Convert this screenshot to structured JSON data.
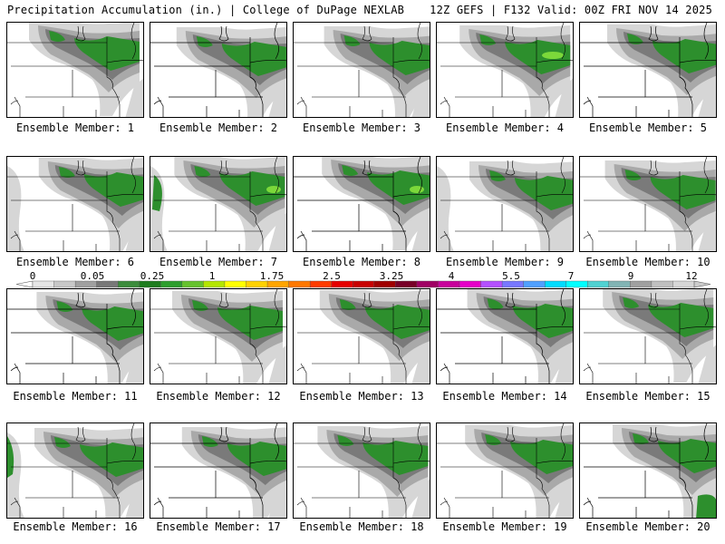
{
  "header": {
    "title": "Precipitation Accumulation (in.) | College of DuPage NEXLAB",
    "run_info": "12Z GEFS | F132 Valid: 00Z FRI NOV 14 2025"
  },
  "members": [
    {
      "label": "Ensemble Member: 1"
    },
    {
      "label": "Ensemble Member: 2"
    },
    {
      "label": "Ensemble Member: 3"
    },
    {
      "label": "Ensemble Member: 4"
    },
    {
      "label": "Ensemble Member: 5"
    },
    {
      "label": "Ensemble Member: 6"
    },
    {
      "label": "Ensemble Member: 7"
    },
    {
      "label": "Ensemble Member: 8"
    },
    {
      "label": "Ensemble Member: 9"
    },
    {
      "label": "Ensemble Member: 10"
    },
    {
      "label": "Ensemble Member: 11"
    },
    {
      "label": "Ensemble Member: 12"
    },
    {
      "label": "Ensemble Member: 13"
    },
    {
      "label": "Ensemble Member: 14"
    },
    {
      "label": "Ensemble Member: 15"
    },
    {
      "label": "Ensemble Member: 16"
    },
    {
      "label": "Ensemble Member: 17"
    },
    {
      "label": "Ensemble Member: 18"
    },
    {
      "label": "Ensemble Member: 19"
    },
    {
      "label": "Ensemble Member: 20"
    }
  ],
  "colorbar": {
    "labels": [
      "0",
      "0.05",
      "0.25",
      "1",
      "1.75",
      "2.5",
      "3.25",
      "4",
      "5.5",
      "7",
      "9",
      "12"
    ],
    "colors": [
      "#e6e6e6",
      "#c8c8c8",
      "#a0a0a0",
      "#787878",
      "#3c8c3c",
      "#1e7d1e",
      "#2e9e2e",
      "#66c22e",
      "#b4e600",
      "#ffff00",
      "#ffd200",
      "#ffa500",
      "#ff7800",
      "#ff3c00",
      "#e60000",
      "#c80000",
      "#a00000",
      "#780028",
      "#a00064",
      "#c8009b",
      "#e600c8",
      "#b450ff",
      "#7878ff",
      "#50a0ff",
      "#00dcff",
      "#00ffff",
      "#50d2d2",
      "#82b4b4",
      "#a0a0a0",
      "#c0c0c0",
      "#d7d7d7"
    ]
  },
  "precip_colors": {
    "light": "#d6d6d6",
    "medium": "#a9a9a9",
    "dark": "#7a7a7a",
    "green": "#2d8f2d",
    "bright_green": "#7cd83a"
  }
}
